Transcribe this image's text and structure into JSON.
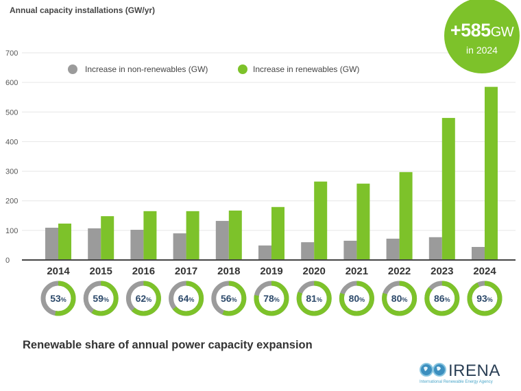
{
  "chart_data": {
    "type": "bar",
    "title": "Annual capacity installations (GW/yr)",
    "categories": [
      "2014",
      "2015",
      "2016",
      "2017",
      "2018",
      "2019",
      "2020",
      "2021",
      "2022",
      "2023",
      "2024"
    ],
    "series": [
      {
        "name": "Increase in non-renewables (GW)",
        "color": "#9b9b9b",
        "values": [
          109,
          107,
          102,
          90,
          132,
          49,
          60,
          65,
          72,
          77,
          44
        ]
      },
      {
        "name": "Increase in renewables (GW)",
        "color": "#7dc22a",
        "values": [
          123,
          148,
          165,
          165,
          167,
          179,
          265,
          258,
          297,
          480,
          585
        ]
      }
    ],
    "ylim": [
      0,
      700
    ],
    "yticks": [
      0,
      100,
      200,
      300,
      400,
      500,
      600,
      700
    ],
    "grid": true,
    "legend": "top",
    "renewable_share": {
      "label": "Renewable share of annual power capacity expansion",
      "values": [
        53,
        59,
        62,
        64,
        56,
        78,
        81,
        80,
        80,
        86,
        93
      ],
      "unit": "%"
    },
    "callout": {
      "value": "+585",
      "unit": "GW",
      "sub": "in 2024"
    }
  },
  "logo": {
    "name": "IRENA",
    "tagline": "International Renewable Energy Agency"
  }
}
